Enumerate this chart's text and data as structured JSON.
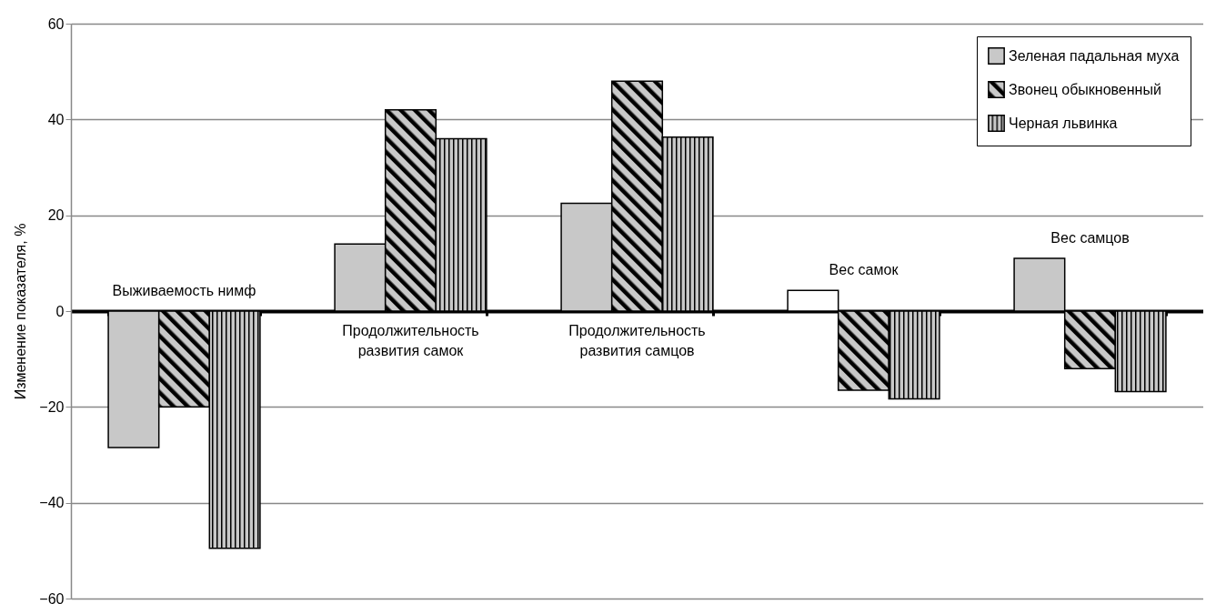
{
  "chart_data": {
    "type": "bar",
    "ylabel": "Изменение показателя, %",
    "categories": [
      "Выживаемость нимф",
      "Продолжительность развития самок",
      "Продолжительность развития самцов",
      "Вес самок",
      "Вес самцов"
    ],
    "series": [
      {
        "name": "Зеленая падальная муха",
        "color": "#c8c8c8",
        "colors": [
          "#c8c8c8",
          "#c8c8c8",
          "#c8c8c8",
          "#ffffff",
          "#c8c8c8"
        ],
        "values": [
          -28.5,
          14,
          22.5,
          4.3,
          11
        ]
      },
      {
        "name": "Звонец обыкновенный",
        "color": "#000000",
        "values": [
          -20,
          42,
          48,
          -16.5,
          -12
        ]
      },
      {
        "name": "Черная львинка",
        "color": "#000000",
        "values": [
          -49.5,
          36,
          36.3,
          -18.3,
          -16.8
        ]
      }
    ],
    "ylim": [
      -60,
      60
    ],
    "yticks": [
      -60,
      -40,
      -20,
      0,
      20,
      40,
      60
    ],
    "grid": "y",
    "legend": "top right"
  }
}
